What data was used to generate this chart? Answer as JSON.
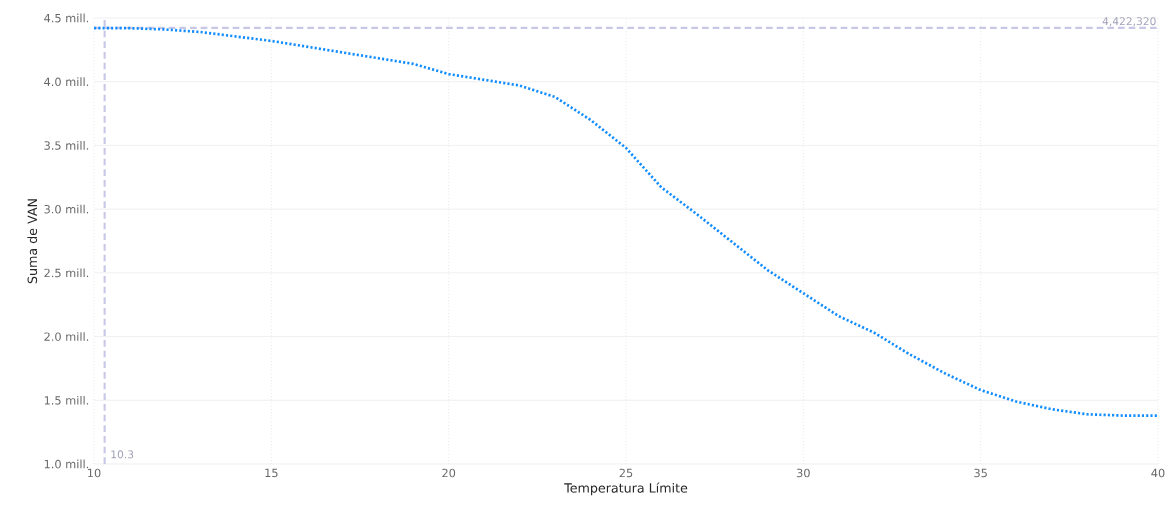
{
  "chart_data": {
    "type": "line",
    "xlabel": "Temperatura Límite",
    "ylabel": "Suma de VAN",
    "x": [
      10,
      11,
      12,
      13,
      15,
      17,
      19,
      20,
      22,
      23,
      24,
      25,
      26,
      27,
      28,
      29,
      30,
      31,
      32,
      33,
      34,
      35,
      36,
      37,
      38,
      39,
      40
    ],
    "series": [
      {
        "color": "#118dff",
        "values": [
          4.42,
          4.42,
          4.41,
          4.39,
          4.32,
          4.23,
          4.14,
          4.06,
          3.97,
          3.88,
          3.7,
          3.48,
          3.17,
          2.96,
          2.74,
          2.52,
          2.34,
          2.16,
          2.03,
          1.86,
          1.71,
          1.58,
          1.49,
          1.43,
          1.39,
          1.38,
          1.38
        ]
      }
    ],
    "xlim": [
      10,
      40
    ],
    "ylim": [
      1.0,
      4.5
    ],
    "xticks": [
      10,
      15,
      20,
      25,
      30,
      35,
      40
    ],
    "yticks": [
      {
        "value": 1.0,
        "label": "1.0 mill."
      },
      {
        "value": 1.5,
        "label": "1.5 mill."
      },
      {
        "value": 2.0,
        "label": "2.0 mill."
      },
      {
        "value": 2.5,
        "label": "2.5 mill."
      },
      {
        "value": 3.0,
        "label": "3.0 mill."
      },
      {
        "value": 3.5,
        "label": "3.5 mill."
      },
      {
        "value": 4.0,
        "label": "4.0 mill."
      },
      {
        "value": 4.5,
        "label": "4.5 mill."
      }
    ],
    "ref_lines": [
      {
        "axis": "y",
        "value": 4.42232,
        "label": "4,422,320",
        "color": "#c8c8e6",
        "line_style": "dashed"
      },
      {
        "axis": "x",
        "value": 10.3,
        "label": "10.3",
        "color": "#c8c8e6",
        "line_style": "dashed"
      }
    ],
    "grid": true,
    "marker": "none",
    "line_style": "dotted"
  }
}
